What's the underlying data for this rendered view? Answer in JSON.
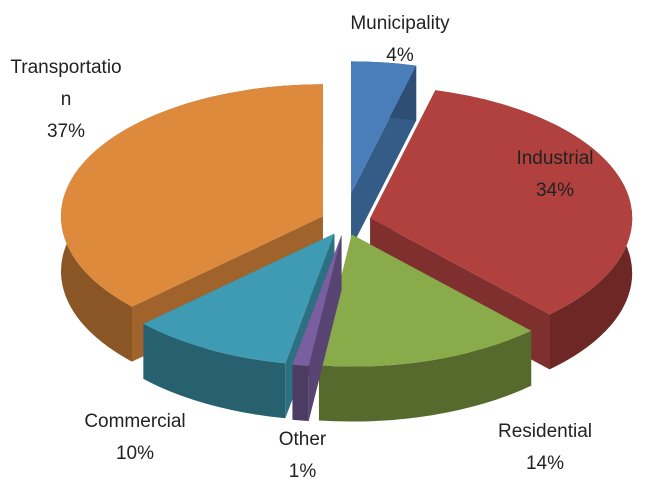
{
  "chart_data": {
    "type": "pie3d",
    "categories": [
      "Municipality",
      "Industrial",
      "Residential",
      "Other",
      "Commercial",
      "Transportation"
    ],
    "values": [
      4,
      34,
      14,
      1,
      10,
      37
    ],
    "value_labels": [
      "4%",
      "34%",
      "14%",
      "1%",
      "10%",
      "37%"
    ],
    "colors": [
      "#4a7ebb",
      "#b0413e",
      "#8aab4a",
      "#7a5fa0",
      "#3f9bb3",
      "#de8a3c"
    ]
  }
}
